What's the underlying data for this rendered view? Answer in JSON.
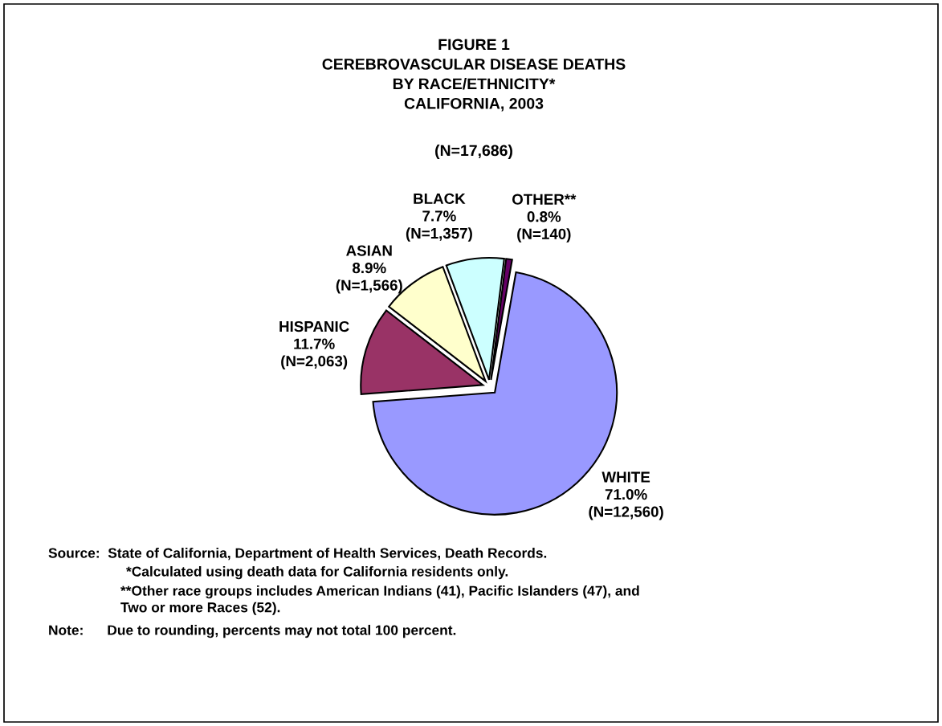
{
  "chart_data": {
    "type": "pie",
    "title": "FIGURE 1\nCEREBROVASCULAR DISEASE DEATHS\nBY RACE/ETHNICITY*\nCALIFORNIA, 2003",
    "subtitle": "(N=17,686)",
    "categories": [
      "WHITE",
      "HISPANIC",
      "ASIAN",
      "BLACK",
      "OTHER**"
    ],
    "values": [
      12560,
      2063,
      1566,
      1357,
      140
    ],
    "value_labels": [
      "71.0%\n(N=12,560)",
      "11.7%\n(N=2,063)",
      "8.9%\n(N=1,566)",
      "7.7%\n(N=1,357)",
      "0.8%\n(N=140)"
    ],
    "colors": [
      "#9999ff",
      "#993366",
      "#ffffcc",
      "#ccffff",
      "#660066"
    ],
    "annotations": [
      "Source:  State of California, Department of Health Services, Death Records.",
      "*Calculated using death data for California residents only.",
      "**Other race groups includes American Indians (41), Pacific Islanders (47), and\nTwo or more Races (52).",
      "Note:      Due to rounding, percents may not total 100 percent."
    ]
  }
}
